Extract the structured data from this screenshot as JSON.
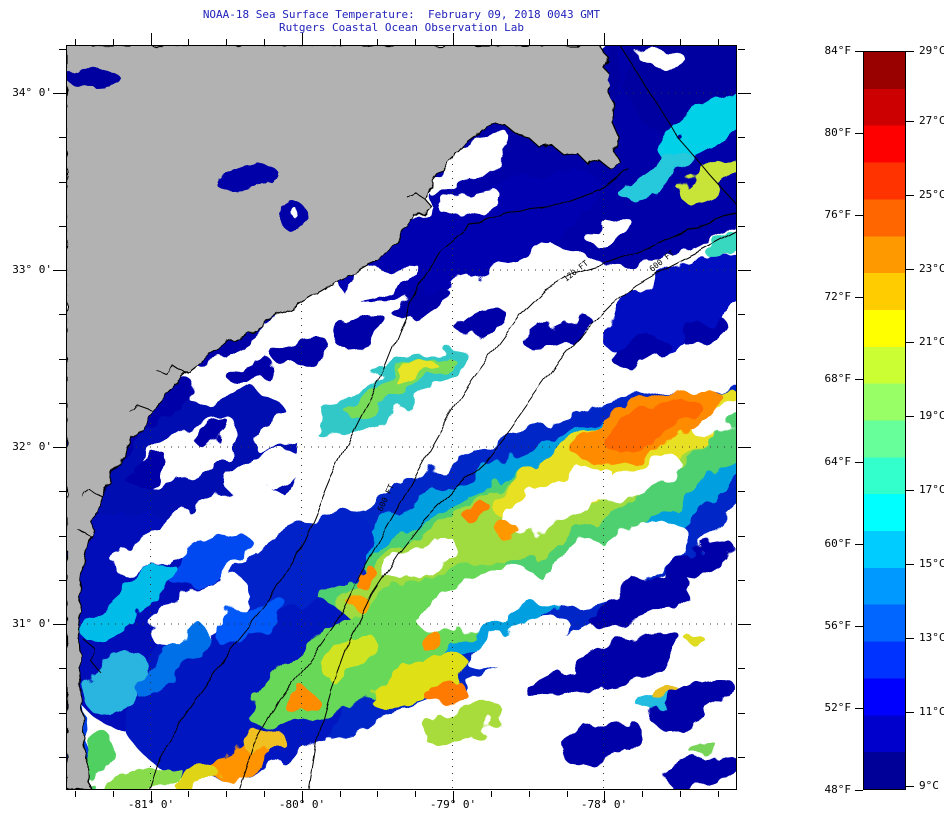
{
  "title": "NOAA-18 Sea Surface Temperature:  February 09, 2018 0043 GMT",
  "subtitle": "Rutgers Coastal Ocean Observation Lab",
  "title_color": "#2222bb",
  "map": {
    "x_ticks": [
      {
        "label": "-81° 0'",
        "lon": -81
      },
      {
        "label": "-80° 0'",
        "lon": -80
      },
      {
        "label": "-79° 0'",
        "lon": -79
      },
      {
        "label": "-78° 0'",
        "lon": -78
      }
    ],
    "y_ticks": [
      {
        "label": "34° 0'",
        "lat": 34
      },
      {
        "label": "33° 0'",
        "lat": 33
      },
      {
        "label": "32° 0'",
        "lat": 32
      },
      {
        "label": "31° 0'",
        "lat": 31
      }
    ],
    "contour_labels": [
      "120 FT",
      "600 FT",
      "600 FT"
    ],
    "land_color": "#b2b2b2",
    "cloud_color": "#ffffff",
    "deep_water_color": "#0000a8"
  },
  "colorbar": {
    "colormap": "jet",
    "min_f": 48,
    "max_f": 84,
    "min_c": 9,
    "max_c": 29,
    "f_ticks": [
      {
        "label": "84°F",
        "value": 84
      },
      {
        "label": "80°F",
        "value": 80
      },
      {
        "label": "76°F",
        "value": 76
      },
      {
        "label": "72°F",
        "value": 72
      },
      {
        "label": "68°F",
        "value": 68
      },
      {
        "label": "64°F",
        "value": 64
      },
      {
        "label": "60°F",
        "value": 60
      },
      {
        "label": "56°F",
        "value": 56
      },
      {
        "label": "52°F",
        "value": 52
      },
      {
        "label": "48°F",
        "value": 48
      }
    ],
    "c_ticks": [
      {
        "label": "29°C",
        "value": 29
      },
      {
        "label": "27°C",
        "value": 27
      },
      {
        "label": "25°C",
        "value": 25
      },
      {
        "label": "23°C",
        "value": 23
      },
      {
        "label": "21°C",
        "value": 21
      },
      {
        "label": "19°C",
        "value": 19
      },
      {
        "label": "17°C",
        "value": 17
      },
      {
        "label": "15°C",
        "value": 15
      },
      {
        "label": "13°C",
        "value": 13
      },
      {
        "label": "11°C",
        "value": 11
      },
      {
        "label": "9°C",
        "value": 9
      }
    ]
  }
}
